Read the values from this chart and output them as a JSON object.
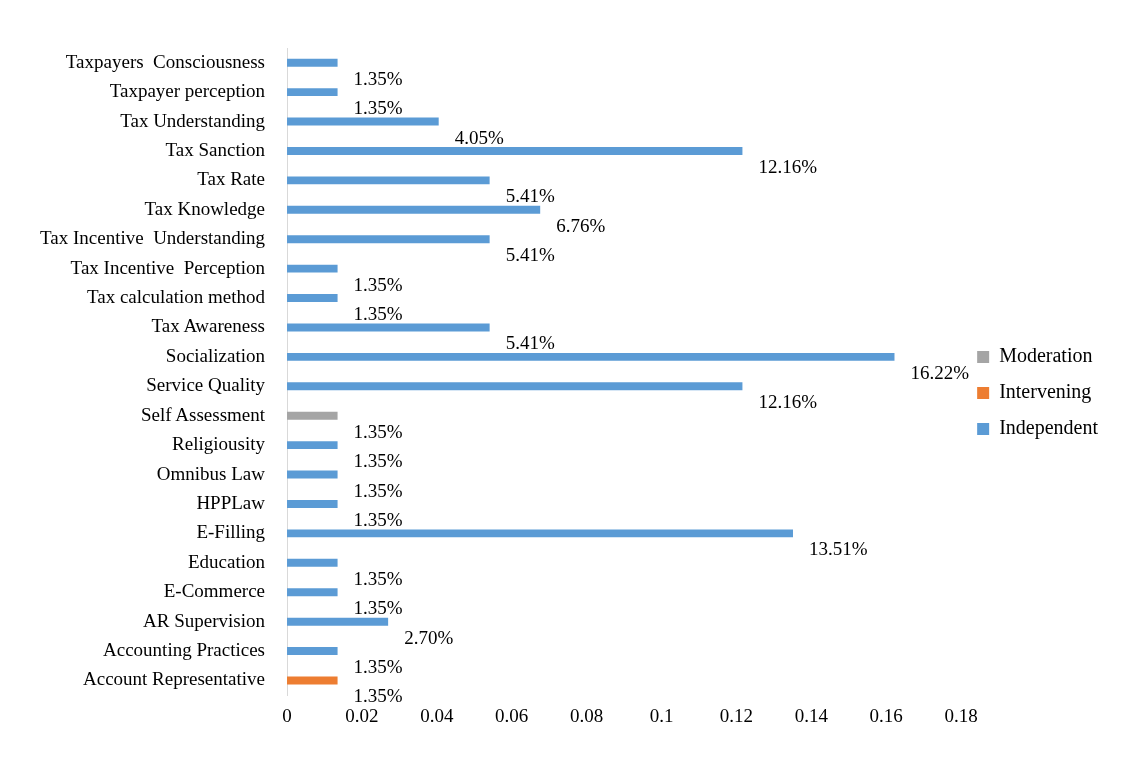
{
  "chart_data": {
    "type": "bar",
    "orientation": "horizontal",
    "legend": "right",
    "grid": false,
    "categories": [
      "Taxpayers  Consciousness",
      "Taxpayer perception",
      "Tax Understanding",
      "Tax Sanction",
      "Tax Rate",
      "Tax Knowledge",
      "Tax Incentive  Understanding",
      "Tax Incentive  Perception",
      "Tax calculation method",
      "Tax Awareness",
      "Socialization",
      "Service Quality",
      "Self Assessment",
      "Religiousity",
      "Omnibus Law",
      "HPPLaw",
      "E-Filling",
      "Education",
      "E-Commerce",
      "AR Supervision",
      "Accounting Practices",
      "Account Representative"
    ],
    "xlim": [
      0,
      0.18
    ],
    "xticks": [
      0,
      0.02,
      0.04,
      0.06,
      0.08,
      0.1,
      0.12,
      0.14,
      0.16,
      0.18
    ],
    "series": [
      {
        "name": "Moderation",
        "color": "#a5a5a5",
        "values": [
          null,
          null,
          null,
          null,
          null,
          null,
          null,
          null,
          null,
          null,
          null,
          null,
          0.0135,
          null,
          null,
          null,
          null,
          null,
          null,
          null,
          null,
          null
        ],
        "value_labels": [
          null,
          null,
          null,
          null,
          null,
          null,
          null,
          null,
          null,
          null,
          null,
          null,
          "1.35%",
          null,
          null,
          null,
          null,
          null,
          null,
          null,
          null,
          null
        ]
      },
      {
        "name": "Intervening",
        "color": "#ed7d31",
        "values": [
          null,
          null,
          null,
          null,
          null,
          null,
          null,
          null,
          null,
          null,
          null,
          null,
          null,
          null,
          null,
          null,
          null,
          null,
          null,
          null,
          null,
          0.0135
        ],
        "value_labels": [
          null,
          null,
          null,
          null,
          null,
          null,
          null,
          null,
          null,
          null,
          null,
          null,
          null,
          null,
          null,
          null,
          null,
          null,
          null,
          null,
          null,
          "1.35%"
        ]
      },
      {
        "name": "Independent",
        "color": "#5b9bd5",
        "values": [
          0.0135,
          0.0135,
          0.0405,
          0.1216,
          0.0541,
          0.0676,
          0.0541,
          0.0135,
          0.0135,
          0.0541,
          0.1622,
          0.1216,
          null,
          0.0135,
          0.0135,
          0.0135,
          0.1351,
          0.0135,
          0.0135,
          0.027,
          0.0135,
          null
        ],
        "value_labels": [
          "1.35%",
          "1.35%",
          "4.05%",
          "12.16%",
          "5.41%",
          "6.76%",
          "5.41%",
          "1.35%",
          "1.35%",
          "5.41%",
          "16.22%",
          "12.16%",
          null,
          "1.35%",
          "1.35%",
          "1.35%",
          "13.51%",
          "1.35%",
          "1.35%",
          "2.70%",
          "1.35%",
          null
        ]
      }
    ]
  }
}
